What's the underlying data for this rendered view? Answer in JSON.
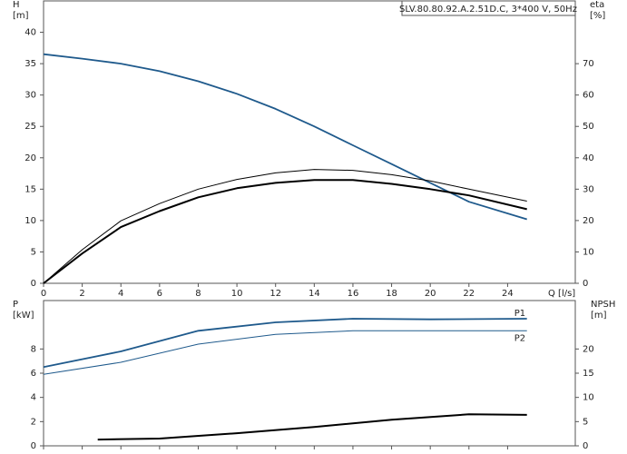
{
  "chart_data": [
    {
      "type": "line",
      "title": "SLV.80.80.92.A.2.51D.C, 3*400 V, 50Hz",
      "xlabel": "Q [l/s]",
      "ylabel": [
        "H",
        "[m]"
      ],
      "y2label": [
        "eta",
        "[%]"
      ],
      "xlim": [
        0,
        27.5
      ],
      "xticks": [
        0,
        2,
        4,
        6,
        8,
        10,
        12,
        14,
        16,
        18,
        20,
        22,
        24
      ],
      "ylim": [
        0,
        45
      ],
      "yticks": [
        0,
        5,
        10,
        15,
        20,
        25,
        30,
        35,
        40
      ],
      "y2lim": [
        0,
        90
      ],
      "y2ticks": [
        0,
        10,
        20,
        30,
        40,
        50,
        60,
        70
      ],
      "xtick_labels": true,
      "grid": false,
      "series": [
        {
          "color": "#1f5a8c",
          "width": 1.8,
          "x": [
            0,
            2,
            4,
            6,
            8,
            10,
            12,
            14,
            16,
            18,
            20,
            22,
            25
          ],
          "values": [
            36.5,
            35.8,
            35,
            33.8,
            32.2,
            30.2,
            27.8,
            25,
            22,
            19,
            16,
            13,
            10.2
          ]
        },
        {
          "color": "#000000",
          "width": 1,
          "axis": "y2",
          "x": [
            0,
            2,
            4,
            6,
            8,
            10,
            12,
            14,
            16,
            18,
            20,
            22,
            25
          ],
          "values": [
            0,
            10.7,
            19.9,
            25.4,
            30,
            33.1,
            35.2,
            36.3,
            36,
            34.6,
            32.6,
            30,
            26.2
          ]
        },
        {
          "color": "#000000",
          "width": 2,
          "axis": "y2",
          "x": [
            0,
            2,
            4,
            6,
            8,
            10,
            12,
            14,
            16,
            18,
            20,
            22,
            25
          ],
          "values": [
            0,
            9.5,
            17.9,
            23,
            27.4,
            30.3,
            32,
            32.9,
            32.9,
            31.7,
            30,
            28,
            23.6
          ]
        }
      ]
    },
    {
      "type": "line",
      "ylabel": [
        "P",
        "[kW]"
      ],
      "y2label": [
        "NPSH",
        "[m]"
      ],
      "xlim": [
        0,
        27.5
      ],
      "xticks": [
        0,
        2,
        4,
        6,
        8,
        10,
        12,
        14,
        16,
        18,
        20,
        22,
        24
      ],
      "ylim": [
        0,
        12
      ],
      "yticks": [
        0,
        2,
        4,
        6,
        8
      ],
      "y2lim": [
        0,
        30
      ],
      "y2ticks": [
        0,
        5,
        10,
        15,
        20
      ],
      "xtick_labels": false,
      "grid": false,
      "series": [
        {
          "name": "P1",
          "color": "#1f5a8c",
          "width": 1.8,
          "x": [
            0,
            4,
            8,
            12,
            16,
            20,
            25
          ],
          "values": [
            6.5,
            7.8,
            9.5,
            10.2,
            10.5,
            10.45,
            10.5
          ]
        },
        {
          "name": "P2",
          "color": "#1f5a8c",
          "width": 1,
          "x": [
            0,
            4,
            8,
            12,
            16,
            20,
            25
          ],
          "values": [
            5.9,
            6.9,
            8.4,
            9.2,
            9.5,
            9.5,
            9.5
          ]
        },
        {
          "color": "#000000",
          "width": 2,
          "axis": "y2",
          "x": [
            2.8,
            6,
            10,
            14,
            18,
            22,
            25
          ],
          "values": [
            1.3,
            1.5,
            2.6,
            3.9,
            5.4,
            6.5,
            6.4
          ]
        }
      ]
    }
  ]
}
